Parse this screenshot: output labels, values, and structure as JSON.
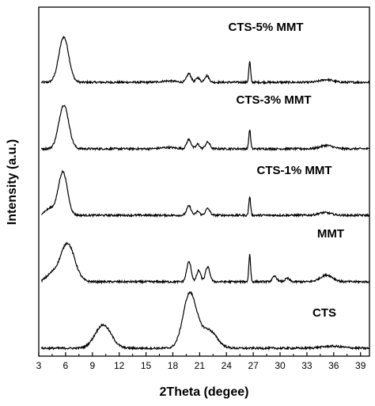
{
  "chart_data": {
    "type": "line",
    "xlabel": "2Theta (degee)",
    "ylabel": "Intensity (a.u.)",
    "xlim": [
      3,
      40
    ],
    "x_ticks": [
      "3",
      "6",
      "9",
      "12",
      "15",
      "18",
      "21",
      "24",
      "27",
      "30",
      "33",
      "36",
      "39"
    ],
    "y_ticks_shown": false,
    "series": [
      {
        "name": "CTS-5% MMT",
        "offset": 4.0,
        "baseline": 0.0,
        "peaks": [
          {
            "x": 5.8,
            "h": 0.68,
            "w": 0.55
          },
          {
            "x": 19.8,
            "h": 0.13,
            "w": 0.25
          },
          {
            "x": 20.8,
            "h": 0.07,
            "w": 0.2
          },
          {
            "x": 21.8,
            "h": 0.1,
            "w": 0.25
          },
          {
            "x": 26.6,
            "h": 0.31,
            "w": 0.1
          },
          {
            "x": 35.2,
            "h": 0.04,
            "w": 0.7
          },
          {
            "x": 17.5,
            "h": 0.02,
            "w": 0.8
          }
        ]
      },
      {
        "name": "CTS-3% MMT",
        "offset": 3.0,
        "baseline": 0.0,
        "peaks": [
          {
            "x": 5.8,
            "h": 0.66,
            "w": 0.55
          },
          {
            "x": 19.8,
            "h": 0.14,
            "w": 0.25
          },
          {
            "x": 20.8,
            "h": 0.07,
            "w": 0.2
          },
          {
            "x": 21.9,
            "h": 0.1,
            "w": 0.25
          },
          {
            "x": 26.6,
            "h": 0.29,
            "w": 0.1
          },
          {
            "x": 35.2,
            "h": 0.05,
            "w": 0.7
          },
          {
            "x": 17.5,
            "h": 0.02,
            "w": 0.8
          }
        ]
      },
      {
        "name": "CTS-1% MMT",
        "offset": 2.0,
        "baseline": 0.0,
        "peaks": [
          {
            "x": 5.7,
            "h": 0.65,
            "w": 0.5
          },
          {
            "x": 19.8,
            "h": 0.14,
            "w": 0.25
          },
          {
            "x": 20.8,
            "h": 0.06,
            "w": 0.2
          },
          {
            "x": 21.9,
            "h": 0.1,
            "w": 0.25
          },
          {
            "x": 26.6,
            "h": 0.28,
            "w": 0.1
          },
          {
            "x": 35.0,
            "h": 0.04,
            "w": 0.7
          },
          {
            "x": 4.3,
            "h": 0.1,
            "w": 0.6
          }
        ]
      },
      {
        "name": "MMT",
        "offset": 1.0,
        "baseline": 0.0,
        "peaks": [
          {
            "x": 6.2,
            "h": 0.58,
            "w": 0.8
          },
          {
            "x": 4.4,
            "h": 0.1,
            "w": 0.6
          },
          {
            "x": 19.8,
            "h": 0.3,
            "w": 0.25
          },
          {
            "x": 20.9,
            "h": 0.17,
            "w": 0.22
          },
          {
            "x": 21.9,
            "h": 0.22,
            "w": 0.25
          },
          {
            "x": 26.6,
            "h": 0.41,
            "w": 0.1
          },
          {
            "x": 29.4,
            "h": 0.08,
            "w": 0.25
          },
          {
            "x": 30.8,
            "h": 0.05,
            "w": 0.25
          },
          {
            "x": 35.2,
            "h": 0.1,
            "w": 0.7
          }
        ]
      },
      {
        "name": "CTS",
        "offset": 0.0,
        "baseline": 0.0,
        "peaks": [
          {
            "x": 10.2,
            "h": 0.35,
            "w": 0.9
          },
          {
            "x": 19.9,
            "h": 0.82,
            "w": 0.75
          },
          {
            "x": 22.0,
            "h": 0.27,
            "w": 0.9
          },
          {
            "x": 35.8,
            "h": 0.03,
            "w": 1.2
          }
        ]
      }
    ]
  }
}
